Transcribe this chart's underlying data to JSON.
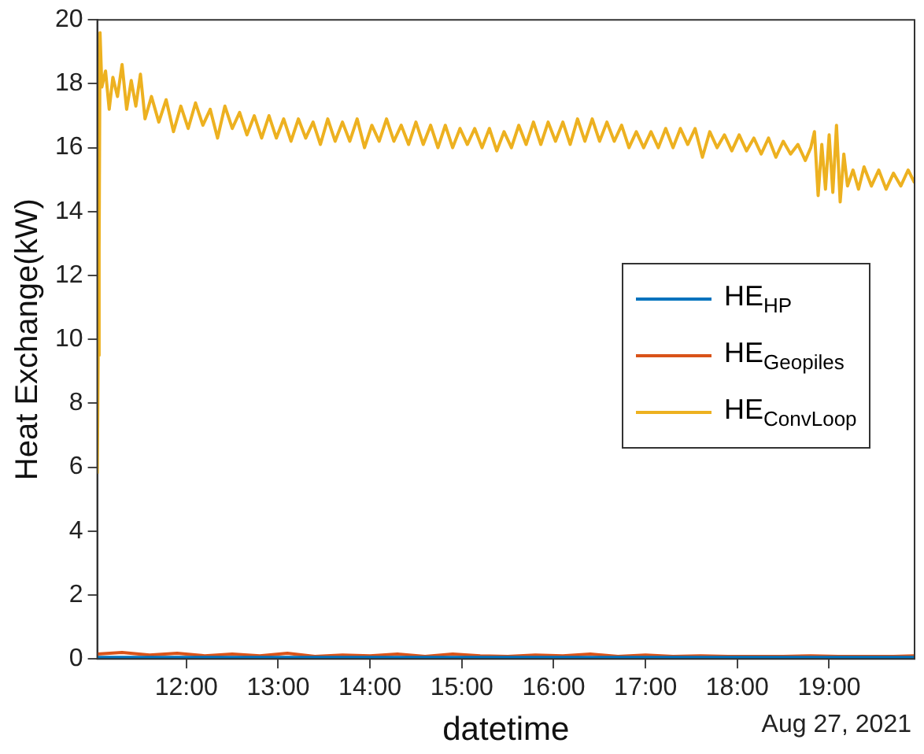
{
  "chart_data": {
    "type": "line",
    "xlabel": "datetime",
    "ylabel": "Heat Exchange(kW)",
    "annotations": [
      "Aug 27, 2021"
    ],
    "xlim": [
      11.03,
      19.93
    ],
    "xticks": [
      {
        "value": 12,
        "label": "12:00"
      },
      {
        "value": 13,
        "label": "13:00"
      },
      {
        "value": 14,
        "label": "14:00"
      },
      {
        "value": 15,
        "label": "15:00"
      },
      {
        "value": 16,
        "label": "16:00"
      },
      {
        "value": 17,
        "label": "17:00"
      },
      {
        "value": 18,
        "label": "18:00"
      },
      {
        "value": 19,
        "label": "19:00"
      }
    ],
    "ylim": [
      0,
      20
    ],
    "yticks": [
      0,
      2,
      4,
      6,
      8,
      10,
      12,
      14,
      16,
      18,
      20
    ],
    "grid": false,
    "legend": "center right",
    "line_style": "solid",
    "marker": "none",
    "series": [
      {
        "name": "HE$_{HP}$",
        "color": "#0072bd",
        "x": [
          11.03,
          12,
          13,
          14,
          15,
          16,
          17,
          18,
          19,
          19.93
        ],
        "values": [
          0.05,
          0.05,
          0.05,
          0.05,
          0.05,
          0.05,
          0.05,
          0.05,
          0.05,
          0.05
        ]
      },
      {
        "name": "HE$_{Geopiles}$",
        "color": "#d95319",
        "x": [
          11.03,
          11.3,
          11.6,
          11.9,
          12.2,
          12.5,
          12.8,
          13.1,
          13.4,
          13.7,
          14,
          14.3,
          14.6,
          14.9,
          15.2,
          15.5,
          15.8,
          16.1,
          16.4,
          16.7,
          17,
          17.3,
          17.6,
          17.9,
          18.2,
          18.5,
          18.8,
          19.1,
          19.4,
          19.7,
          19.93
        ],
        "values": [
          0.15,
          0.2,
          0.12,
          0.18,
          0.1,
          0.15,
          0.1,
          0.18,
          0.08,
          0.12,
          0.1,
          0.15,
          0.08,
          0.15,
          0.1,
          0.08,
          0.12,
          0.1,
          0.15,
          0.08,
          0.12,
          0.08,
          0.1,
          0.08,
          0.08,
          0.08,
          0.1,
          0.08,
          0.08,
          0.08,
          0.1
        ]
      },
      {
        "name": "HE$_{ConvLoop}$",
        "color": "#edb120",
        "x": [
          11.03,
          11.04,
          11.05,
          11.06,
          11.08,
          11.12,
          11.16,
          11.2,
          11.25,
          11.3,
          11.35,
          11.4,
          11.45,
          11.5,
          11.55,
          11.62,
          11.7,
          11.78,
          11.86,
          11.94,
          12.02,
          12.1,
          12.18,
          12.26,
          12.34,
          12.42,
          12.5,
          12.58,
          12.66,
          12.74,
          12.82,
          12.9,
          12.98,
          13.06,
          13.14,
          13.22,
          13.3,
          13.38,
          13.46,
          13.54,
          13.62,
          13.7,
          13.78,
          13.86,
          13.94,
          14.02,
          14.1,
          14.18,
          14.26,
          14.34,
          14.42,
          14.5,
          14.58,
          14.66,
          14.74,
          14.82,
          14.9,
          14.98,
          15.06,
          15.14,
          15.22,
          15.3,
          15.38,
          15.46,
          15.54,
          15.62,
          15.7,
          15.78,
          15.86,
          15.94,
          16.02,
          16.1,
          16.18,
          16.26,
          16.34,
          16.42,
          16.5,
          16.58,
          16.66,
          16.74,
          16.82,
          16.9,
          16.98,
          17.06,
          17.14,
          17.22,
          17.3,
          17.38,
          17.46,
          17.54,
          17.62,
          17.7,
          17.78,
          17.86,
          17.94,
          18.02,
          18.1,
          18.18,
          18.26,
          18.34,
          18.42,
          18.5,
          18.58,
          18.66,
          18.74,
          18.8,
          18.84,
          18.88,
          18.92,
          18.96,
          19.0,
          19.04,
          19.08,
          19.12,
          19.16,
          19.2,
          19.26,
          19.32,
          19.38,
          19.46,
          19.54,
          19.62,
          19.7,
          19.78,
          19.86,
          19.93
        ],
        "values": [
          5.8,
          9.5,
          12.8,
          19.6,
          17.9,
          18.4,
          17.2,
          18.2,
          17.6,
          18.6,
          17.2,
          18.1,
          17.3,
          18.3,
          16.9,
          17.6,
          16.8,
          17.5,
          16.5,
          17.3,
          16.6,
          17.4,
          16.7,
          17.2,
          16.3,
          17.3,
          16.6,
          17.1,
          16.4,
          17.0,
          16.3,
          17.0,
          16.3,
          16.9,
          16.2,
          16.9,
          16.3,
          16.8,
          16.1,
          16.9,
          16.2,
          16.8,
          16.2,
          16.9,
          16.0,
          16.7,
          16.2,
          16.9,
          16.2,
          16.7,
          16.1,
          16.8,
          16.1,
          16.7,
          16.0,
          16.7,
          16.0,
          16.6,
          16.1,
          16.6,
          16.0,
          16.6,
          15.9,
          16.5,
          16.0,
          16.7,
          16.1,
          16.8,
          16.1,
          16.8,
          16.2,
          16.8,
          16.1,
          16.9,
          16.2,
          16.9,
          16.2,
          16.8,
          16.2,
          16.7,
          16.0,
          16.5,
          16.0,
          16.5,
          16.0,
          16.6,
          16.0,
          16.6,
          16.1,
          16.6,
          15.7,
          16.5,
          16.0,
          16.4,
          15.9,
          16.4,
          15.9,
          16.3,
          15.8,
          16.3,
          15.7,
          16.2,
          15.8,
          16.1,
          15.6,
          16.0,
          16.5,
          14.5,
          16.1,
          14.7,
          16.4,
          14.6,
          16.7,
          14.3,
          15.8,
          14.8,
          15.3,
          14.7,
          15.4,
          14.8,
          15.3,
          14.7,
          15.2,
          14.8,
          15.3,
          14.9
        ]
      }
    ]
  }
}
